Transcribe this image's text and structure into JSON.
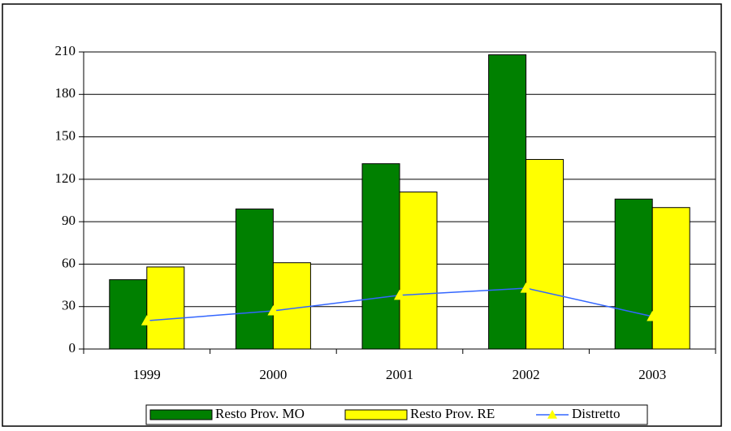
{
  "chart_data": {
    "type": "bar-line",
    "categories": [
      "1999",
      "2000",
      "2001",
      "2002",
      "2003"
    ],
    "series": [
      {
        "name": "Resto Prov. MO",
        "type": "bar",
        "color": "#008000",
        "values": [
          49,
          99,
          131,
          208,
          106
        ]
      },
      {
        "name": "Resto Prov. RE",
        "type": "bar",
        "color": "#ffff00",
        "values": [
          58,
          61,
          111,
          134,
          100
        ]
      },
      {
        "name": "Distretto",
        "type": "line",
        "color": "#3366ff",
        "marker_color": "#ffff00",
        "values": [
          20,
          27,
          38,
          43,
          23
        ]
      }
    ],
    "ylim": [
      0,
      210
    ],
    "yticks": [
      0,
      30,
      60,
      90,
      120,
      150,
      180,
      210
    ],
    "grid": true,
    "legend": "bottom"
  }
}
